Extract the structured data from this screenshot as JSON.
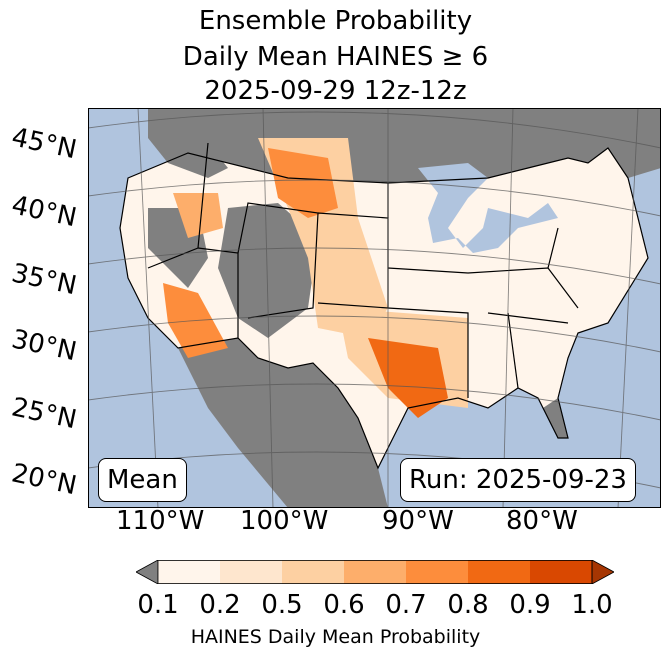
{
  "title": {
    "line1": "Ensemble Probability",
    "line2": "Daily Mean HAINES ≥ 6",
    "line3": "2025-09-29 12z-12z"
  },
  "map": {
    "lat_labels": [
      "45°N",
      "40°N",
      "35°N",
      "30°N",
      "25°N",
      "20°N"
    ],
    "lon_labels": [
      "110°W",
      "100°W",
      "90°W",
      "80°W"
    ],
    "stat_label": "Mean",
    "run_label": "Run: 2025-09-23",
    "colors": {
      "ocean": "#b0c4de",
      "land_missing": "#808080",
      "lakes": "#b0c4de"
    }
  },
  "colorbar": {
    "ticks": [
      "0.1",
      "0.2",
      "0.5",
      "0.6",
      "0.7",
      "0.8",
      "0.9",
      "1.0"
    ],
    "colors": [
      "#fff5eb",
      "#fee6ce",
      "#fdd0a2",
      "#fdae6b",
      "#fd8d3c",
      "#f16913",
      "#d94801",
      "#a63603"
    ],
    "under_color": "#808080",
    "label": "HAINES Daily Mean Probability"
  }
}
